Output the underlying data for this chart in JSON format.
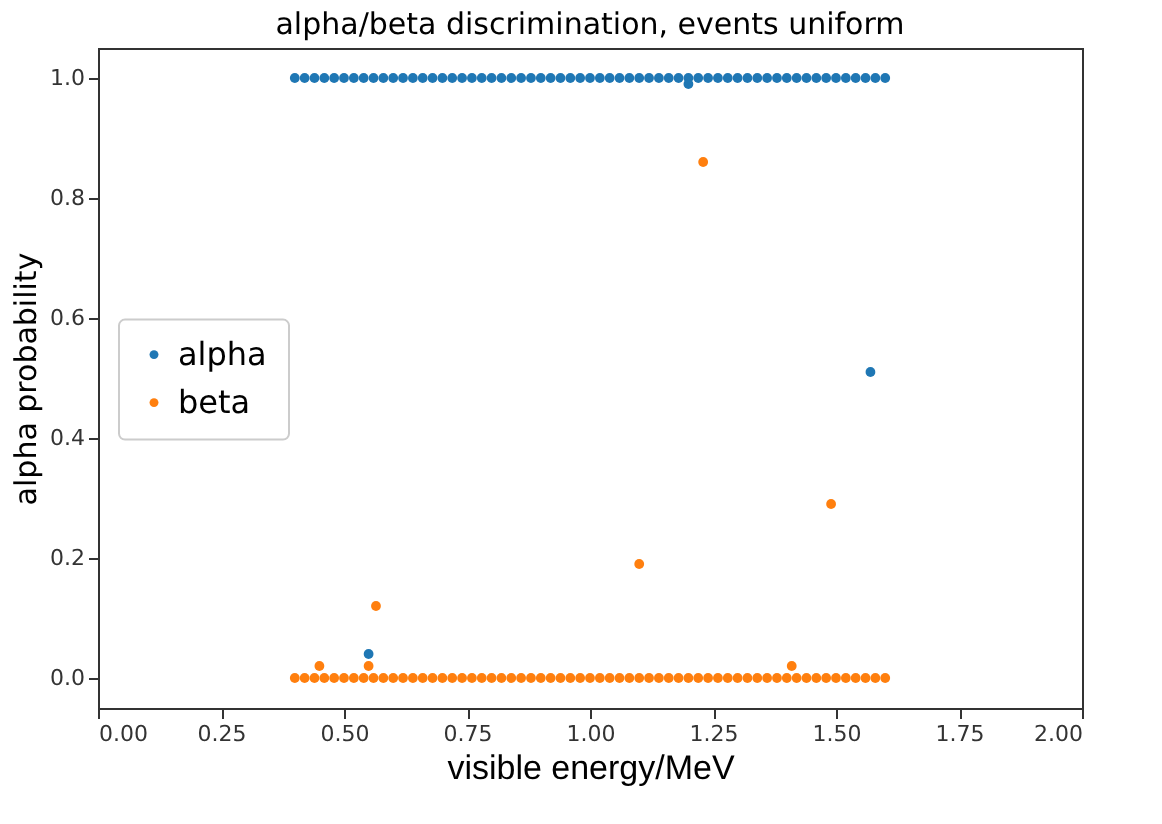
{
  "chart_data": {
    "type": "scatter",
    "title": "alpha/beta discrimination, events uniform",
    "xlabel": "visible energy/MeV",
    "ylabel": "alpha probability",
    "xlim": [
      0,
      2
    ],
    "xticks": [
      {
        "value": 0,
        "label": "0.00"
      },
      {
        "value": 0.25,
        "label": "0.25"
      },
      {
        "value": 0.5,
        "label": "0.50"
      },
      {
        "value": 0.75,
        "label": "0.75"
      },
      {
        "value": 1,
        "label": "1.00"
      },
      {
        "value": 1.25,
        "label": "1.25"
      },
      {
        "value": 1.5,
        "label": "1.50"
      },
      {
        "value": 1.75,
        "label": "1.75"
      },
      {
        "value": 2,
        "label": "2.00"
      }
    ],
    "ylim": [
      -0.05,
      1.05
    ],
    "yticks": [
      {
        "value": 0,
        "label": "0.0"
      },
      {
        "value": 0.2,
        "label": "0.2"
      },
      {
        "value": 0.4,
        "label": "0.4"
      },
      {
        "value": 0.6,
        "label": "0.6"
      },
      {
        "value": 0.8,
        "label": "0.8"
      },
      {
        "value": 1,
        "label": "1.0"
      }
    ],
    "grid": false,
    "legend": "left",
    "marker": "circle",
    "series": [
      {
        "name": "alpha",
        "color": "#1f77b4",
        "x": [
          0.4,
          0.42,
          0.44,
          0.46,
          0.48,
          0.5,
          0.52,
          0.54,
          0.56,
          0.58,
          0.6,
          0.62,
          0.64,
          0.66,
          0.68,
          0.7,
          0.72,
          0.74,
          0.76,
          0.78,
          0.8,
          0.82,
          0.84,
          0.86,
          0.88,
          0.9,
          0.92,
          0.94,
          0.96,
          0.98,
          1.0,
          1.02,
          1.04,
          1.06,
          1.08,
          1.1,
          1.12,
          1.14,
          1.16,
          1.18,
          1.2,
          1.22,
          1.24,
          1.26,
          1.28,
          1.3,
          1.32,
          1.34,
          1.36,
          1.38,
          1.4,
          1.42,
          1.44,
          1.46,
          1.48,
          1.5,
          1.52,
          1.54,
          1.56,
          1.58,
          1.6,
          0.55,
          1.57,
          1.2
        ],
        "values": [
          1,
          1,
          1,
          1,
          1,
          1,
          1,
          1,
          1,
          1,
          1,
          1,
          1,
          1,
          1,
          1,
          1,
          1,
          1,
          1,
          1,
          1,
          1,
          1,
          1,
          1,
          1,
          1,
          1,
          1,
          1,
          1,
          1,
          1,
          1,
          1,
          1,
          1,
          1,
          1,
          1,
          1,
          1,
          1,
          1,
          1,
          1,
          1,
          1,
          1,
          1,
          1,
          1,
          1,
          1,
          1,
          1,
          1,
          1,
          1,
          1,
          0.04,
          0.51,
          0.99
        ]
      },
      {
        "name": "beta",
        "color": "#ff7f0e",
        "x": [
          0.4,
          0.42,
          0.44,
          0.46,
          0.48,
          0.5,
          0.52,
          0.54,
          0.56,
          0.58,
          0.6,
          0.62,
          0.64,
          0.66,
          0.68,
          0.7,
          0.72,
          0.74,
          0.76,
          0.78,
          0.8,
          0.82,
          0.84,
          0.86,
          0.88,
          0.9,
          0.92,
          0.94,
          0.96,
          0.98,
          1.0,
          1.02,
          1.04,
          1.06,
          1.08,
          1.1,
          1.12,
          1.14,
          1.16,
          1.18,
          1.2,
          1.22,
          1.24,
          1.26,
          1.28,
          1.3,
          1.32,
          1.34,
          1.36,
          1.38,
          1.4,
          1.42,
          1.44,
          1.46,
          1.48,
          1.5,
          1.52,
          1.54,
          1.56,
          1.58,
          1.6,
          0.45,
          0.55,
          0.565,
          1.1,
          1.23,
          1.41,
          1.49
        ],
        "values": [
          0,
          0,
          0,
          0,
          0,
          0,
          0,
          0,
          0,
          0,
          0,
          0,
          0,
          0,
          0,
          0,
          0,
          0,
          0,
          0,
          0,
          0,
          0,
          0,
          0,
          0,
          0,
          0,
          0,
          0,
          0,
          0,
          0,
          0,
          0,
          0,
          0,
          0,
          0,
          0,
          0,
          0,
          0,
          0,
          0,
          0,
          0,
          0,
          0,
          0,
          0,
          0,
          0,
          0,
          0,
          0,
          0,
          0,
          0,
          0,
          0,
          0.02,
          0.02,
          0.12,
          0.19,
          0.86,
          0.02,
          0.29
        ]
      }
    ]
  }
}
